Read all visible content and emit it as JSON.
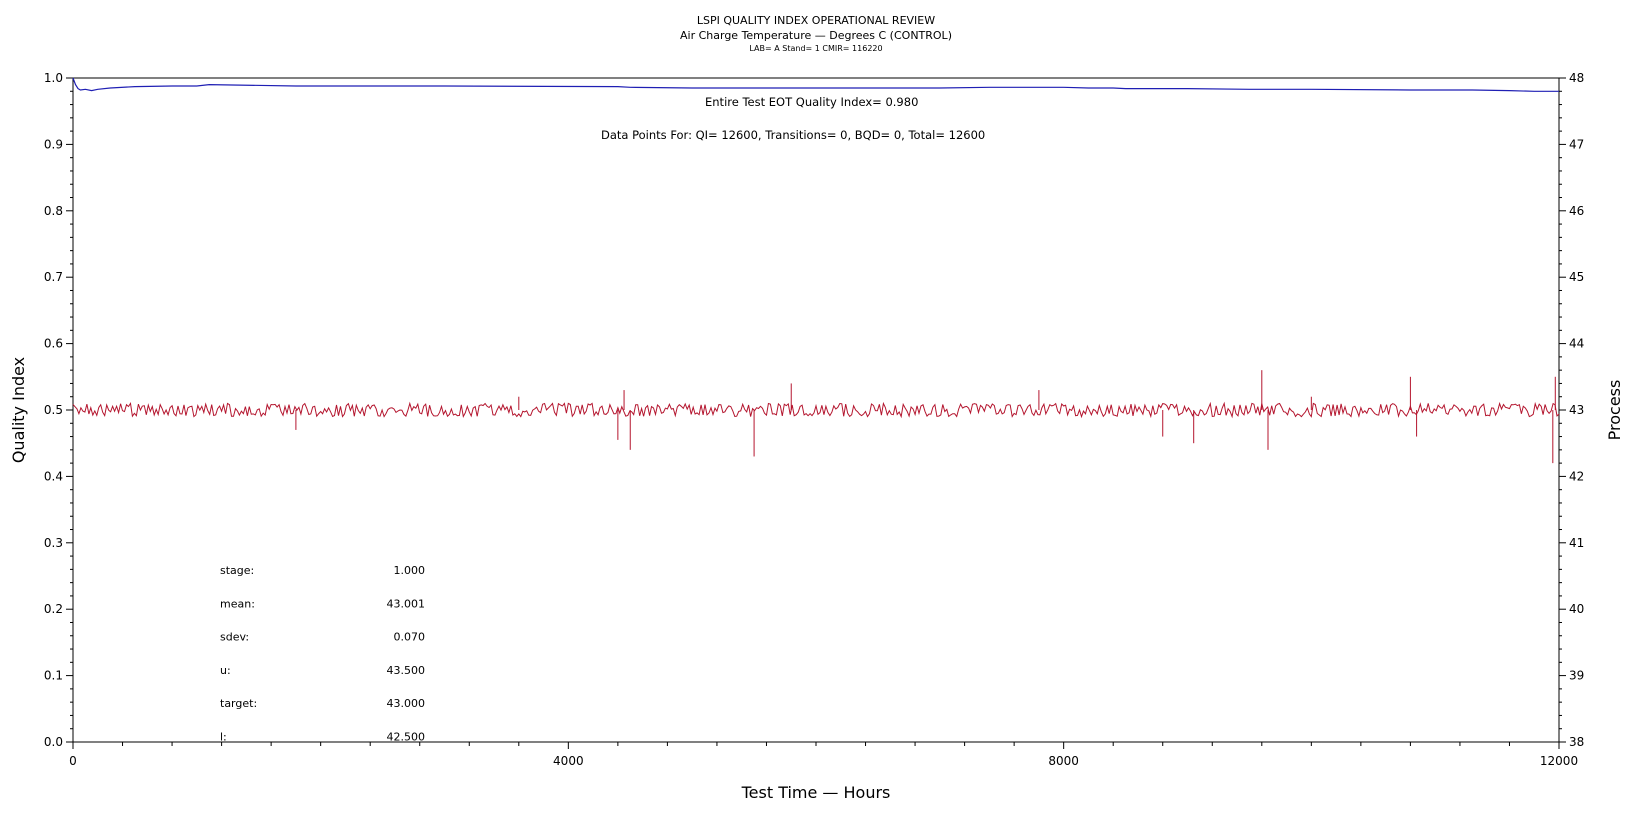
{
  "chart_data": {
    "type": "line",
    "title": "LSPI QUALITY INDEX OPERATIONAL REVIEW",
    "subtitle": "Air Charge Temperature — Degrees C (CONTROL)",
    "subtitle2": "LAB= A Stand= 1 CMIR= 116220",
    "xlabel": "Test Time — Hours",
    "ylabel_left": "Quality Index",
    "ylabel_right": "Process",
    "xlim": [
      0,
      12000
    ],
    "ylim_left": [
      0.0,
      1.0
    ],
    "ylim_right": [
      38,
      48
    ],
    "x_ticks": [
      "0",
      "4000",
      "8000",
      "12000"
    ],
    "y_ticks_left": [
      "0.0",
      "0.1",
      "0.2",
      "0.3",
      "0.4",
      "0.5",
      "0.6",
      "0.7",
      "0.8",
      "0.9",
      "1.0"
    ],
    "y_ticks_right": [
      "38",
      "39",
      "40",
      "41",
      "42",
      "43",
      "44",
      "45",
      "46",
      "47",
      "48"
    ],
    "grid": false,
    "annotations": {
      "eot_quality_index": "Entire Test EOT Quality Index=    0.980",
      "data_points": "Data Points For: QI= 12600, Transitions=     0, BQD=     0, Total= 12600"
    },
    "stats": [
      {
        "label": "stage:",
        "value": "1.000"
      },
      {
        "label": "mean:",
        "value": "43.001"
      },
      {
        "label": "sdev:",
        "value": "0.070"
      },
      {
        "label": "u:",
        "value": "43.500"
      },
      {
        "label": "target:",
        "value": "43.000"
      },
      {
        "label": "l:",
        "value": "42.500"
      }
    ],
    "series": [
      {
        "axis": "left",
        "color": "#1f1fb4",
        "x": [
          0,
          20,
          40,
          60,
          100,
          150,
          200,
          300,
          500,
          800,
          1000,
          1100,
          1800,
          2600,
          3000,
          4400,
          4500,
          5000,
          6000,
          7000,
          7400,
          8000,
          8200,
          8400,
          8500,
          8800,
          9000,
          9500,
          10000,
          10800,
          11300,
          11600,
          11800,
          12000
        ],
        "values": [
          1.0,
          0.99,
          0.984,
          0.982,
          0.983,
          0.981,
          0.983,
          0.985,
          0.987,
          0.988,
          0.988,
          0.99,
          0.988,
          0.988,
          0.988,
          0.987,
          0.986,
          0.985,
          0.985,
          0.985,
          0.986,
          0.986,
          0.985,
          0.985,
          0.984,
          0.984,
          0.984,
          0.983,
          0.983,
          0.982,
          0.982,
          0.981,
          0.98,
          0.98
        ]
      },
      {
        "axis": "right",
        "color": "#b4152e",
        "baseline": 43.0,
        "band_low": 42.9,
        "band_high": 43.1,
        "x": [
          1800,
          3600,
          4400,
          4450,
          4500,
          5500,
          5800,
          7800,
          8800,
          9050,
          9600,
          9650,
          10000,
          10800,
          10850,
          11950,
          11970
        ],
        "values": [
          42.7,
          43.2,
          42.55,
          43.3,
          42.4,
          42.3,
          43.4,
          43.3,
          42.6,
          42.5,
          43.6,
          42.4,
          43.2,
          43.5,
          42.6,
          42.2,
          43.5
        ]
      }
    ]
  }
}
